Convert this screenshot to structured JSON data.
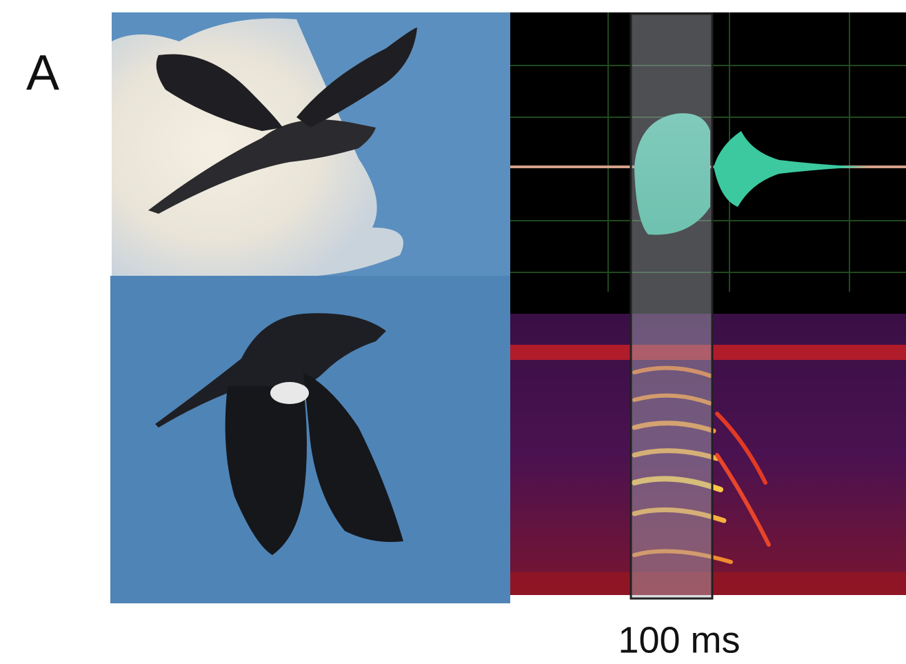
{
  "panel_label": "A",
  "scale_label": "100 ms"
}
